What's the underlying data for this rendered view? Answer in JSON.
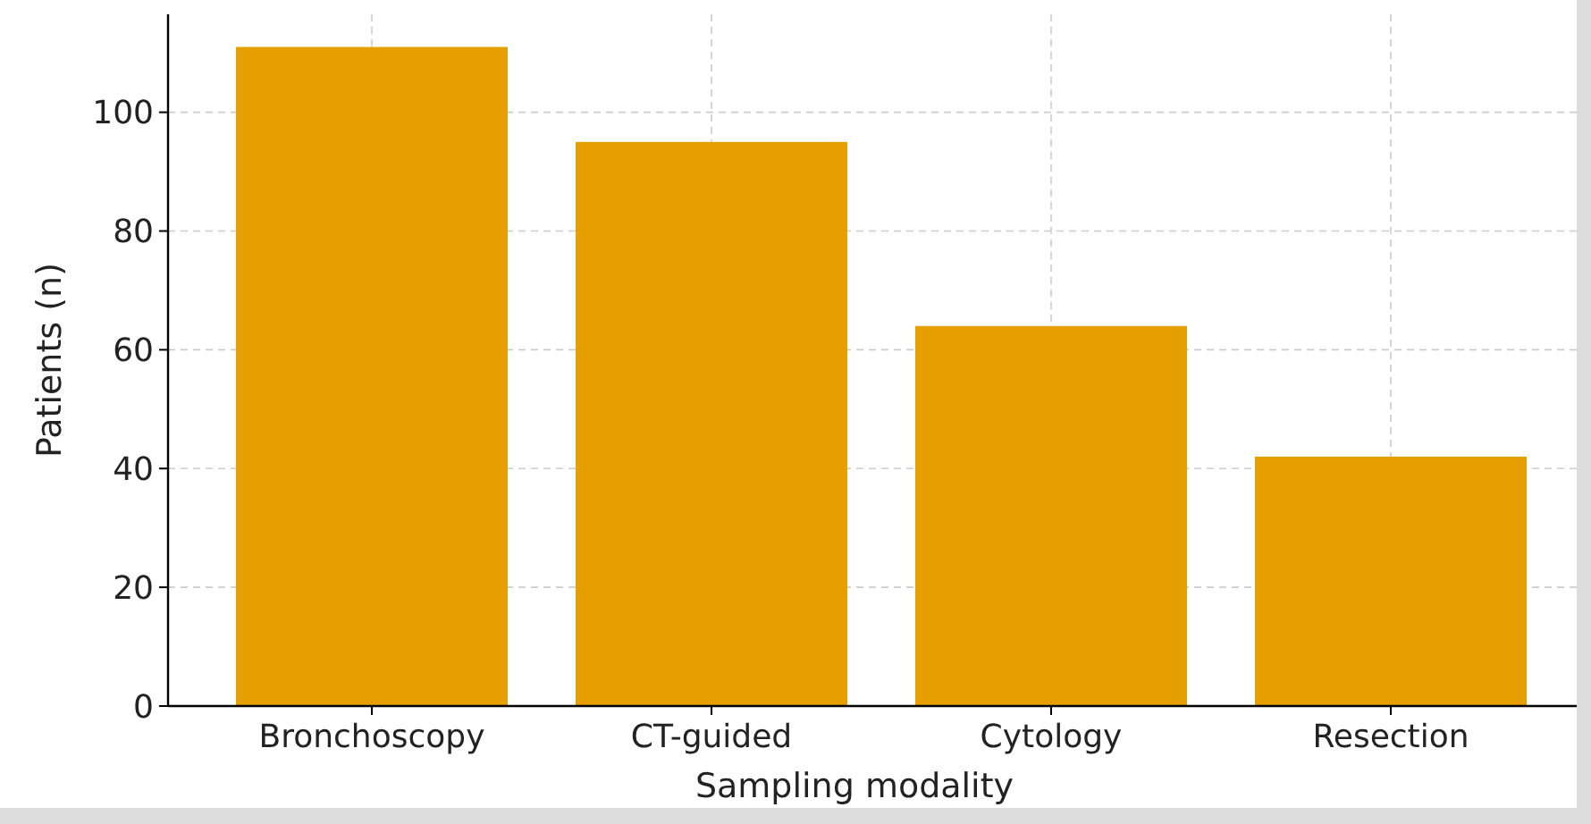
{
  "chart_data": {
    "type": "bar",
    "xlabel": "Sampling modality",
    "ylabel": "Patients (n)",
    "categories": [
      "Bronchoscopy",
      "CT-guided",
      "Cytology",
      "Resection"
    ],
    "values": [
      111,
      95,
      64,
      42
    ],
    "color": "#e69f00",
    "ylim": [
      0,
      116.5
    ],
    "yticks": [
      0,
      20,
      40,
      60,
      80,
      100
    ],
    "grid": true
  }
}
